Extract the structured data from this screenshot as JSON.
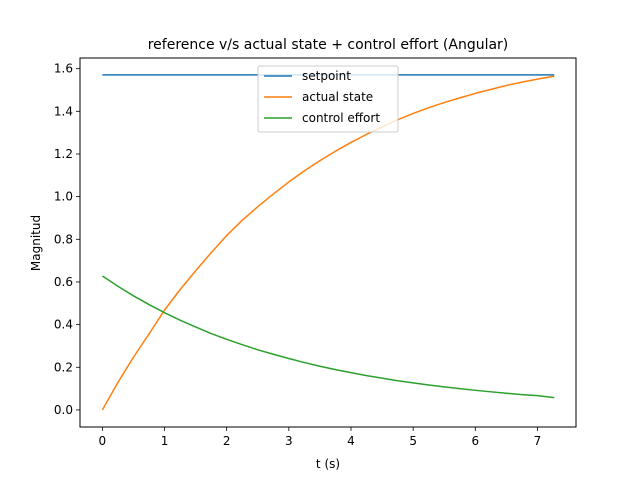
{
  "chart_data": {
    "type": "line",
    "title": "reference v/s actual state + control effort (Angular)",
    "xlabel": "t (s)",
    "ylabel": "Magnitud",
    "xlim": [
      -0.36,
      7.62
    ],
    "ylim": [
      -0.08,
      1.65
    ],
    "xticks": [
      0,
      1,
      2,
      3,
      4,
      5,
      6,
      7
    ],
    "yticks": [
      0.0,
      0.2,
      0.4,
      0.6,
      0.8,
      1.0,
      1.2,
      1.4,
      1.6
    ],
    "ytick_labels": [
      "0.0",
      "0.2",
      "0.4",
      "0.6",
      "0.8",
      "1.0",
      "1.2",
      "1.4",
      "1.6"
    ],
    "grid": false,
    "legend_position": "top-center",
    "series": [
      {
        "name": "setpoint",
        "color": "#1f77b4",
        "x": [
          0,
          7.27
        ],
        "y": [
          1.571,
          1.571
        ]
      },
      {
        "name": "actual state",
        "color": "#ff7f0e",
        "x": [
          0,
          0.25,
          0.5,
          0.75,
          1.0,
          1.25,
          1.5,
          1.75,
          2.0,
          2.25,
          2.5,
          2.75,
          3.0,
          3.25,
          3.5,
          3.75,
          4.0,
          4.25,
          4.5,
          4.75,
          5.0,
          5.25,
          5.5,
          5.75,
          6.0,
          6.25,
          6.5,
          6.75,
          7.0,
          7.27
        ],
        "y": [
          0.0,
          0.129,
          0.247,
          0.356,
          0.468,
          0.564,
          0.652,
          0.737,
          0.818,
          0.889,
          0.953,
          1.012,
          1.069,
          1.121,
          1.169,
          1.213,
          1.254,
          1.292,
          1.327,
          1.36,
          1.39,
          1.417,
          1.441,
          1.463,
          1.484,
          1.503,
          1.521,
          1.537,
          1.551,
          1.565
        ]
      },
      {
        "name": "control effort",
        "color": "#2ca02c",
        "x": [
          0,
          0.25,
          0.5,
          0.75,
          1.0,
          1.25,
          1.5,
          1.75,
          2.0,
          2.25,
          2.5,
          2.75,
          3.0,
          3.25,
          3.5,
          3.75,
          4.0,
          4.25,
          4.5,
          4.75,
          5.0,
          5.25,
          5.5,
          5.75,
          6.0,
          6.25,
          6.5,
          6.75,
          7.0,
          7.27
        ],
        "y": [
          0.628,
          0.58,
          0.535,
          0.494,
          0.456,
          0.421,
          0.389,
          0.358,
          0.331,
          0.306,
          0.282,
          0.261,
          0.241,
          0.222,
          0.205,
          0.189,
          0.175,
          0.161,
          0.149,
          0.137,
          0.127,
          0.117,
          0.108,
          0.1,
          0.092,
          0.085,
          0.078,
          0.072,
          0.067,
          0.058
        ]
      }
    ]
  }
}
